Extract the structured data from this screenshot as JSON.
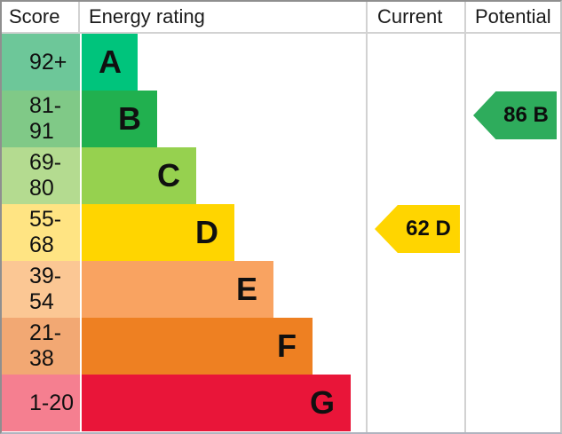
{
  "header": {
    "score": "Score",
    "energy_rating": "Energy rating",
    "current": "Current",
    "potential": "Potential"
  },
  "chart_data": {
    "type": "bar",
    "title": "Energy rating (EPC) band chart",
    "orientation": "horizontal",
    "bands": [
      {
        "letter": "A",
        "score_range": "92+",
        "score_bg": "#6dc799",
        "bar_color": "#00c47c"
      },
      {
        "letter": "B",
        "score_range": "81-91",
        "score_bg": "#80c987",
        "bar_color": "#21b04f"
      },
      {
        "letter": "C",
        "score_range": "69-80",
        "score_bg": "#b4db90",
        "bar_color": "#96d14f"
      },
      {
        "letter": "D",
        "score_range": "55-68",
        "score_bg": "#ffe483",
        "bar_color": "#ffd500"
      },
      {
        "letter": "E",
        "score_range": "39-54",
        "score_bg": "#fbc794",
        "bar_color": "#f9a361"
      },
      {
        "letter": "F",
        "score_range": "21-38",
        "score_bg": "#f2a873",
        "bar_color": "#ee8022"
      },
      {
        "letter": "G",
        "score_range": "1-20",
        "score_bg": "#f57f90",
        "bar_color": "#e91539"
      }
    ],
    "current": {
      "label": "62 D",
      "value": 62,
      "band": "D",
      "color": "#ffd500"
    },
    "potential": {
      "label": "86 B",
      "value": 86,
      "band": "B",
      "color": "#2eac5c"
    }
  }
}
